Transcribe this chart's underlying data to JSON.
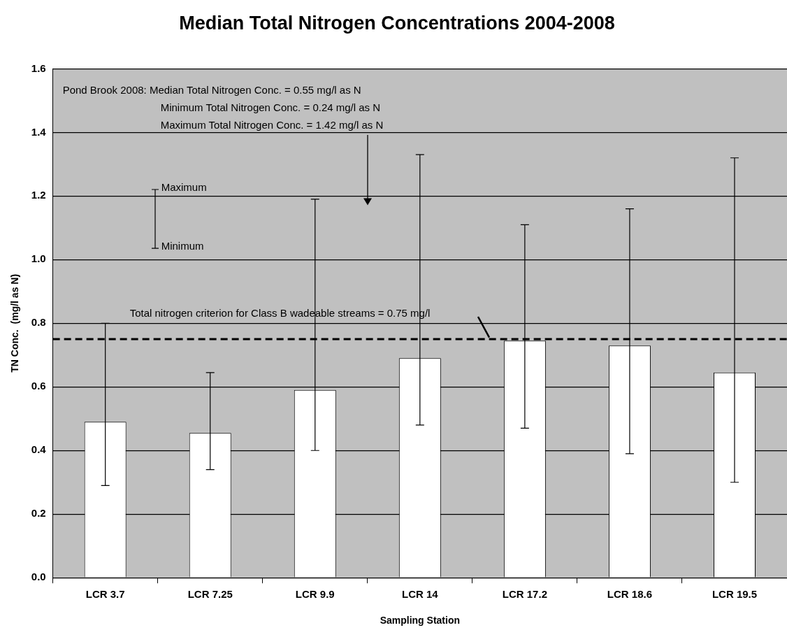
{
  "chart_data": {
    "type": "bar",
    "title": "Median Total Nitrogen Concentrations 2004-2008",
    "xlabel": "Sampling Station",
    "ylabel": "TN Conc.  (mg/l as N)",
    "categories": [
      "LCR 3.7",
      "LCR 7.25",
      "LCR 9.9",
      "LCR 14",
      "LCR 17.2",
      "LCR 18.6",
      "LCR 19.5"
    ],
    "values": [
      0.49,
      0.455,
      0.59,
      0.69,
      0.745,
      0.73,
      0.645
    ],
    "color": "#ffffff",
    "errors": [
      [
        0.29,
        0.8
      ],
      [
        0.34,
        0.645
      ],
      [
        0.4,
        1.19
      ],
      [
        0.48,
        1.33
      ],
      [
        0.47,
        1.11
      ],
      [
        0.39,
        1.16
      ],
      [
        0.3,
        1.32
      ]
    ],
    "ylim": [
      0,
      1.6
    ],
    "yticks": [
      {
        "value": 0,
        "label": "0.0"
      },
      0.2,
      0.4,
      0.6,
      0.8,
      {
        "value": 1,
        "label": "1.0"
      },
      1.2,
      1.4,
      1.6
    ],
    "grid": "y",
    "ref_lines": [
      {
        "axis": "y",
        "value": 0.75,
        "label": "Total nitrogen criterion for Class B wadeable streams = 0.75 mg/l",
        "color": "#000000",
        "line_style": "dashed"
      }
    ],
    "annotations": [
      "Pond Brook 2008: Median Total Nitrogen Conc. = 0.55 mg/l as N",
      "Minimum Total Nitrogen Conc. = 0.24 mg/l as N",
      "Maximum Total Nitrogen Conc. = 1.42 mg/l as N",
      "Maximum",
      "Minimum"
    ]
  }
}
